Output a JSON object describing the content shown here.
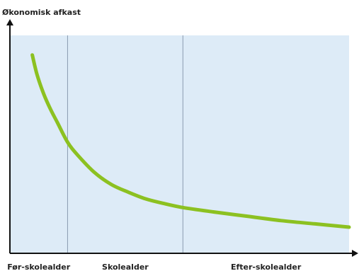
{
  "chart_data": {
    "type": "line",
    "title": "",
    "ylabel": "Økonomisk afkast",
    "xlabel": "",
    "grid": false,
    "legend": "none",
    "xlim": [
      0,
      100
    ],
    "ylim": [
      0,
      100
    ],
    "phases": [
      {
        "label": "Før-skolealder",
        "x_start": 0,
        "x_end": 17
      },
      {
        "label": "Skolealder",
        "x_start": 17,
        "x_end": 51
      },
      {
        "label": "Efter-skolealder",
        "x_start": 51,
        "x_end": 100
      }
    ],
    "series": [
      {
        "color": "#8cc121",
        "x": [
          6.6,
          8,
          10,
          12,
          14,
          17,
          20,
          25,
          30,
          35,
          40,
          45,
          51,
          60,
          70,
          80,
          90,
          100
        ],
        "y": [
          91,
          82,
          73,
          66,
          60,
          51,
          45,
          37,
          31.5,
          28,
          25,
          23,
          21,
          19,
          17,
          15,
          13.5,
          12
        ]
      }
    ]
  },
  "colors": {
    "plot_background": "#ddebf7",
    "axis": "#111111",
    "divider": "#8a9bb0",
    "curve": "#8cc121"
  }
}
